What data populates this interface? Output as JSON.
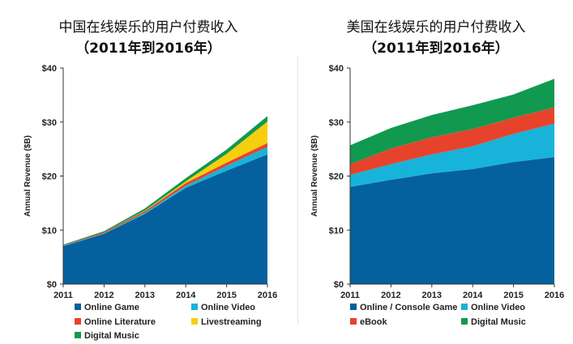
{
  "chart_data": [
    {
      "type": "area",
      "stacked": true,
      "title": "中国在线娱乐的用户付费收入",
      "subtitle": "（2011年到2016年）",
      "xlabel": "",
      "ylabel": "Annual Revenue ($B)",
      "x": [
        "2011",
        "2012",
        "2013",
        "2014",
        "2015",
        "2016"
      ],
      "ylim": [
        0,
        40
      ],
      "yticks": [
        "$0",
        "$10",
        "$20",
        "$30",
        "$40"
      ],
      "grid": false,
      "legend_position": "bottom",
      "series": [
        {
          "name": "Online Game",
          "color": "#05609E",
          "values": [
            7.0,
            9.3,
            13.0,
            17.8,
            21.0,
            24.0
          ]
        },
        {
          "name": "Online Video",
          "color": "#18B3D8",
          "values": [
            0.1,
            0.1,
            0.2,
            0.4,
            0.9,
            1.4
          ]
        },
        {
          "name": "Online Literature",
          "color": "#E7432C",
          "values": [
            0.1,
            0.2,
            0.3,
            0.5,
            0.6,
            0.7
          ]
        },
        {
          "name": "Livestreaming",
          "color": "#F5CF0D",
          "values": [
            0.0,
            0.0,
            0.1,
            0.3,
            1.6,
            4.0
          ]
        },
        {
          "name": "Digital Music",
          "color": "#11994F",
          "values": [
            0.1,
            0.2,
            0.4,
            0.6,
            0.8,
            1.0
          ]
        }
      ]
    },
    {
      "type": "area",
      "stacked": true,
      "title": "美国在线娱乐的用户付费收入",
      "subtitle": "（2011年到2016年）",
      "xlabel": "",
      "ylabel": "Annual Revenue ($B)",
      "x": [
        "2011",
        "2012",
        "2013",
        "2014",
        "2015",
        "2016"
      ],
      "ylim": [
        0,
        40
      ],
      "yticks": [
        "$0",
        "$10",
        "$20",
        "$30",
        "$40"
      ],
      "grid": false,
      "legend_position": "bottom",
      "series": [
        {
          "name": "Online / Console Game",
          "color": "#05609E",
          "values": [
            18.0,
            19.3,
            20.5,
            21.3,
            22.6,
            23.5
          ]
        },
        {
          "name": "Online Video",
          "color": "#18B3D8",
          "values": [
            2.2,
            2.9,
            3.5,
            4.2,
            5.2,
            6.2
          ]
        },
        {
          "name": "eBook",
          "color": "#E7432C",
          "values": [
            2.0,
            2.9,
            3.2,
            3.2,
            3.0,
            3.0
          ]
        },
        {
          "name": "Digital Music",
          "color": "#11994F",
          "values": [
            3.5,
            3.8,
            4.1,
            4.4,
            4.3,
            5.3
          ]
        }
      ]
    }
  ]
}
